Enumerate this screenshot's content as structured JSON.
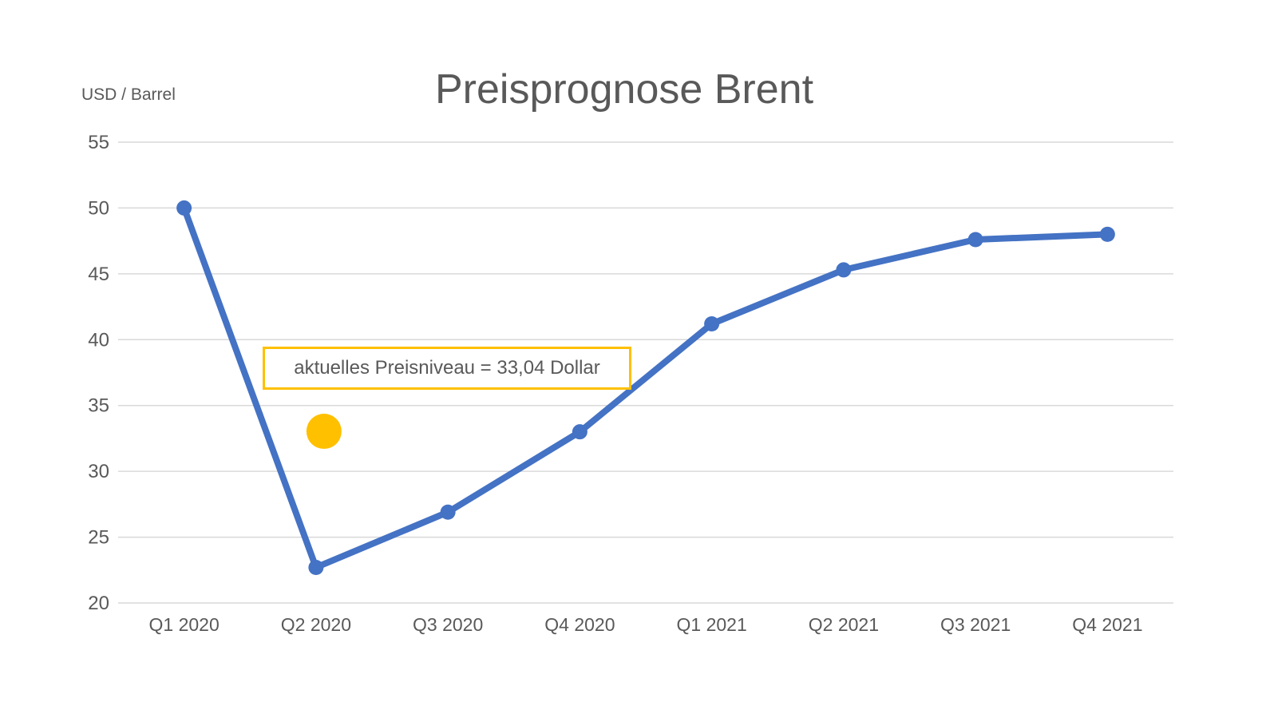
{
  "chart_data": {
    "type": "line",
    "title": "Preisprognose Brent",
    "ylabel": "USD / Barrel",
    "xlabel": "",
    "categories": [
      "Q1 2020",
      "Q2 2020",
      "Q3 2020",
      "Q4 2020",
      "Q1 2021",
      "Q2 2021",
      "Q3 2021",
      "Q4 2021"
    ],
    "series": [
      {
        "values": [
          50,
          22.7,
          26.9,
          33,
          41.2,
          45.3,
          47.6,
          48
        ],
        "color": "#4472C4"
      }
    ],
    "ylim": [
      20,
      55
    ],
    "yticks": [
      20,
      25,
      30,
      35,
      40,
      45,
      50,
      55
    ],
    "grid": true,
    "legend": false,
    "annotations": [
      {
        "type": "point",
        "category": "Q2 2020",
        "value": 33.04,
        "color": "#FFC000"
      },
      {
        "type": "textbox",
        "text": "aktuelles Preisniveau = 33,04 Dollar",
        "border_color": "#FFC000",
        "fill": "#FFFFFF"
      }
    ]
  },
  "colors": {
    "line": "#4472C4",
    "highlight": "#FFC000",
    "grid": "#D9D9D9",
    "text": "#595959",
    "background": "#FFFFFF"
  }
}
